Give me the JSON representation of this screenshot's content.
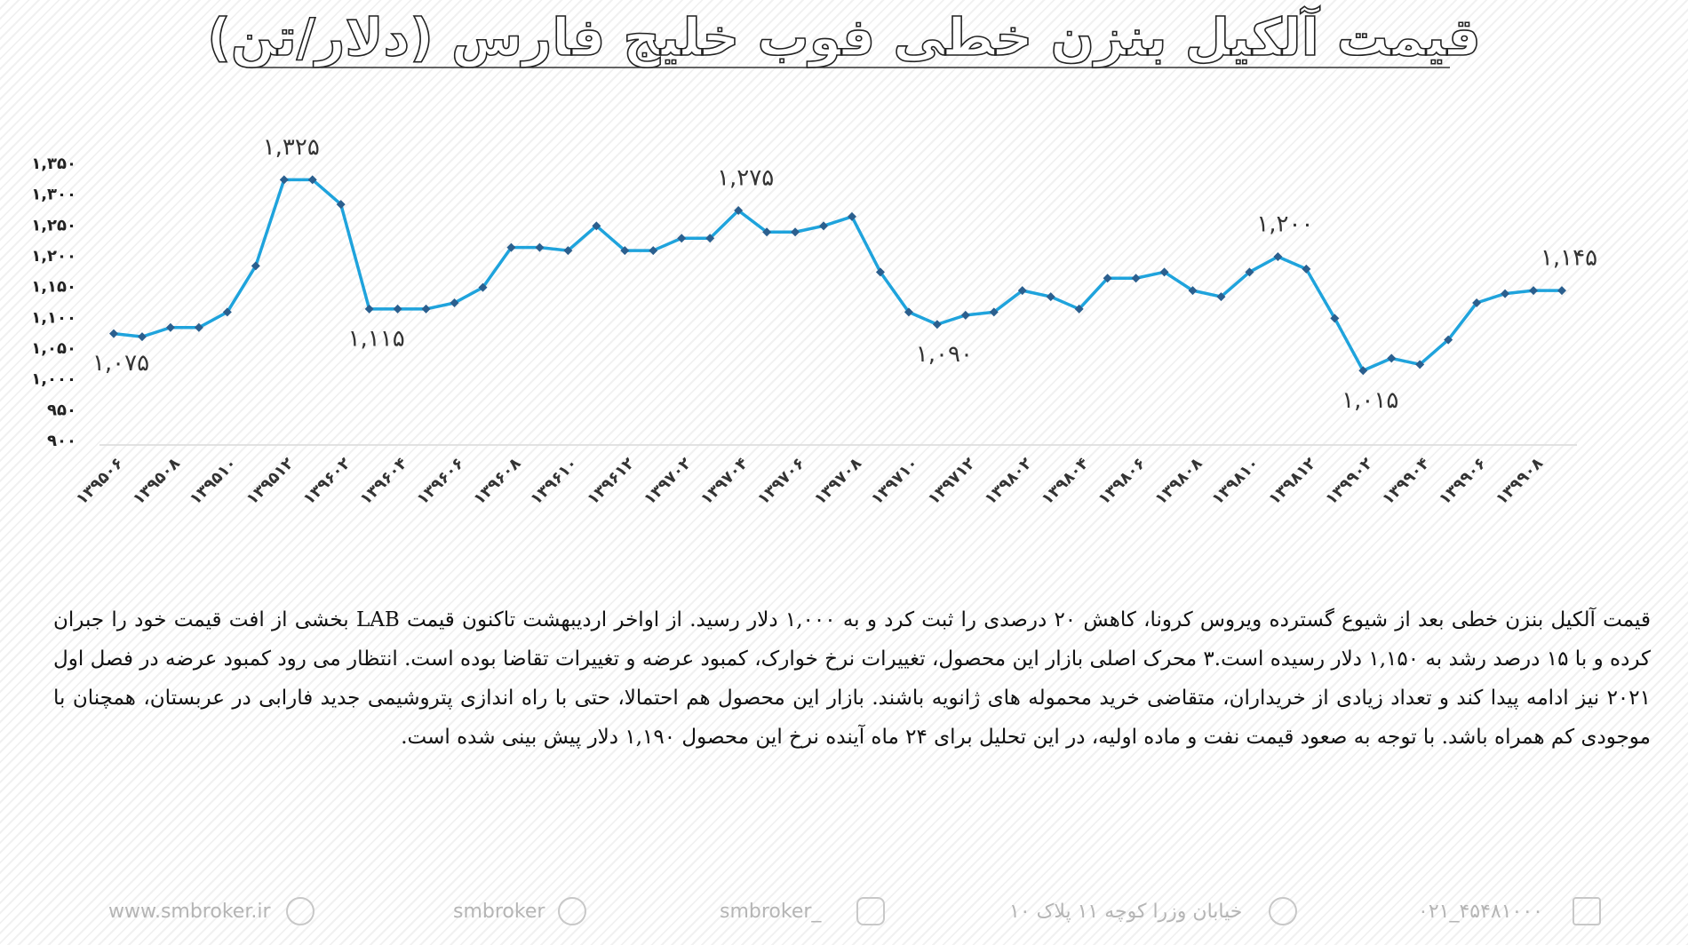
{
  "chart_data": {
    "type": "line",
    "title": "قیمت آلکیل بنزن خطی فوب خلیج فارس (دلار/تن)",
    "categories": [
      "۱۳۹۵۰۶",
      null,
      "۱۳۹۵۰۸",
      null,
      "۱۳۹۵۱۰",
      null,
      "۱۳۹۵۱۲",
      null,
      "۱۳۹۶۰۲",
      null,
      "۱۳۹۶۰۴",
      null,
      "۱۳۹۶۰۶",
      null,
      "۱۳۹۶۰۸",
      null,
      "۱۳۹۶۱۰",
      null,
      "۱۳۹۶۱۲",
      null,
      "۱۳۹۷۰۲",
      null,
      "۱۳۹۷۰۴",
      null,
      "۱۳۹۷۰۶",
      null,
      "۱۳۹۷۰۸",
      null,
      "۱۳۹۷۱۰",
      null,
      "۱۳۹۷۱۲",
      null,
      "۱۳۹۸۰۲",
      null,
      "۱۳۹۸۰۴",
      null,
      "۱۳۹۸۰۶",
      null,
      "۱۳۹۸۰۸",
      null,
      "۱۳۹۸۱۰",
      null,
      "۱۳۹۸۱۲",
      null,
      "۱۳۹۹۰۲",
      null,
      "۱۳۹۹۰۴",
      null,
      "۱۳۹۹۰۶",
      null,
      "۱۳۹۹۰۸",
      null
    ],
    "values": [
      1075,
      1070,
      1085,
      1085,
      1110,
      1185,
      1325,
      1325,
      1285,
      1115,
      1115,
      1115,
      1125,
      1150,
      1215,
      1215,
      1210,
      1250,
      1210,
      1210,
      1230,
      1230,
      1275,
      1240,
      1240,
      1250,
      1265,
      1175,
      1110,
      1090,
      1105,
      1110,
      1145,
      1135,
      1115,
      1165,
      1165,
      1175,
      1145,
      1135,
      1175,
      1200,
      1180,
      1100,
      1015,
      1035,
      1025,
      1065,
      1125,
      1140,
      1145,
      1145
    ],
    "value_labels": [
      "۱,۰۷۵",
      null,
      null,
      null,
      null,
      null,
      "۱,۳۲۵",
      null,
      null,
      "۱,۱۱۵",
      null,
      null,
      null,
      null,
      null,
      null,
      null,
      null,
      null,
      null,
      null,
      null,
      "۱,۲۷۵",
      null,
      null,
      null,
      null,
      null,
      null,
      "۱,۰۹۰",
      null,
      null,
      null,
      null,
      null,
      null,
      null,
      null,
      null,
      null,
      null,
      "۱,۲۰۰",
      null,
      null,
      "۱,۰۱۵",
      null,
      null,
      null,
      null,
      null,
      null,
      "۱,۱۴۵"
    ],
    "color": "#1fa3dc",
    "marker_color": "#2b5f8e",
    "ylim": [
      900,
      1350
    ],
    "yticks": [
      {
        "value": 900,
        "label": "۹۰۰"
      },
      {
        "value": 950,
        "label": "۹۵۰"
      },
      {
        "value": 1000,
        "label": "۱,۰۰۰"
      },
      {
        "value": 1050,
        "label": "۱,۰۵۰"
      },
      {
        "value": 1100,
        "label": "۱,۱۰۰"
      },
      {
        "value": 1150,
        "label": "۱,۱۵۰"
      },
      {
        "value": 1200,
        "label": "۱,۲۰۰"
      },
      {
        "value": 1250,
        "label": "۱,۲۵۰"
      },
      {
        "value": 1300,
        "label": "۱,۳۰۰"
      },
      {
        "value": 1350,
        "label": "۱,۳۵۰"
      }
    ],
    "grid": false
  },
  "body": "قیمت آلکیل بنزن خطی بعد از شیوع گسترده ویروس کرونا، کاهش ۲۰ درصدی را ثبت کرد و به ۱,۰۰۰ دلار رسید. از اواخر اردیبهشت تاکنون قیمت LAB بخشی از افت قیمت خود را جبران کرده و با ۱۵ درصد رشد به ۱,۱۵۰ دلار رسیده است.۳ محرک اصلی بازار این محصول، تغییرات نرخ خوارک، کمبود عرضه و تغییرات تقاضا بوده است. انتظار می رود کمبود عرضه در فصل اول ۲۰۲۱ نیز ادامه پیدا کند و تعداد زیادی از خریداران، متقاضی خرید محموله های ژانویه باشند. بازار این محصول هم احتمالا، حتی با راه اندازی پتروشیمی جدید فارابی در عربستان، همچنان با موجودی کم همراه باشد. با توجه به صعود قیمت نفت و ماده اولیه، در این تحلیل برای ۲۴ ماه آینده نرخ این محصول ۱,۱۹۰ دلار پیش بینی شده است.",
  "footer": {
    "website": "www.smbroker.ir",
    "telegram": "smbroker",
    "instagram": "smbroker_",
    "address": "خیابان وزرا کوچه ۱۱ پلاک ۱۰",
    "phone": "۰۲۱_۴۵۴۸۱۰۰۰"
  }
}
